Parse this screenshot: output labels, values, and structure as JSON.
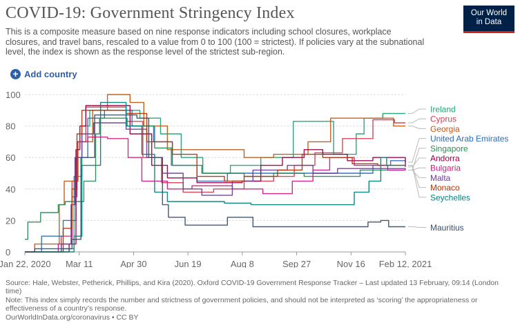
{
  "header": {
    "title": "COVID-19: Government Stringency Index",
    "subtitle": "This is a composite measure based on nine response indicators including school closures, workplace closures, and travel bans, rescaled to a value from 0 to 100 (100 = strictest). If policies vary at the subnational level, the index is shown as the response level of the strictest sub-region.",
    "logo_line1": "Our World",
    "logo_line2": "in Data",
    "add_country_label": "Add country",
    "add_icon": "plus-circle-icon"
  },
  "chart_data": {
    "type": "line",
    "x_ticks": [
      "Jan 22, 2020",
      "Mar 11",
      "Apr 30",
      "Jun 19",
      "Aug 8",
      "Sep 27",
      "Nov 16",
      "Feb 12, 2021"
    ],
    "x_range": [
      "2020-01-22",
      "2021-02-12"
    ],
    "ylim": [
      0,
      100
    ],
    "y_ticks": [
      0,
      20,
      40,
      60,
      80,
      100
    ],
    "grid": "horizontal dashed",
    "legend_position": "right",
    "series": [
      {
        "name": "Ireland",
        "color": "#18a673",
        "points": [
          [
            "2020-01-22",
            0
          ],
          [
            "2020-03-01",
            2
          ],
          [
            "2020-03-12",
            48
          ],
          [
            "2020-03-20",
            80
          ],
          [
            "2020-03-28",
            90
          ],
          [
            "2020-05-18",
            85
          ],
          [
            "2020-06-08",
            75
          ],
          [
            "2020-06-29",
            60
          ],
          [
            "2020-07-21",
            50
          ],
          [
            "2020-08-18",
            55
          ],
          [
            "2020-09-18",
            60
          ],
          [
            "2020-10-07",
            60
          ],
          [
            "2020-10-21",
            83
          ],
          [
            "2020-12-01",
            62
          ],
          [
            "2020-12-24",
            75
          ],
          [
            "2021-01-01",
            85
          ],
          [
            "2021-01-20",
            88
          ],
          [
            "2021-02-12",
            88
          ]
        ]
      },
      {
        "name": "Cyprus",
        "color": "#d73c50",
        "points": [
          [
            "2020-01-22",
            0
          ],
          [
            "2020-02-28",
            10
          ],
          [
            "2020-03-10",
            45
          ],
          [
            "2020-03-16",
            70
          ],
          [
            "2020-03-24",
            92
          ],
          [
            "2020-05-04",
            83
          ],
          [
            "2020-05-21",
            60
          ],
          [
            "2020-06-09",
            44
          ],
          [
            "2020-07-01",
            38
          ],
          [
            "2020-08-01",
            40
          ],
          [
            "2020-09-01",
            45
          ],
          [
            "2020-10-01",
            48
          ],
          [
            "2020-10-22",
            55
          ],
          [
            "2020-11-12",
            63
          ],
          [
            "2020-12-10",
            72
          ],
          [
            "2021-01-10",
            84
          ],
          [
            "2021-02-01",
            82
          ],
          [
            "2021-02-12",
            82
          ]
        ]
      },
      {
        "name": "Georgia",
        "color": "#c15814",
        "points": [
          [
            "2020-01-22",
            0
          ],
          [
            "2020-02-01",
            5
          ],
          [
            "2020-02-26",
            30
          ],
          [
            "2020-03-02",
            45
          ],
          [
            "2020-03-16",
            70
          ],
          [
            "2020-03-31",
            90
          ],
          [
            "2020-04-15",
            100
          ],
          [
            "2020-05-08",
            95
          ],
          [
            "2020-05-22",
            80
          ],
          [
            "2020-06-15",
            65
          ],
          [
            "2020-07-10",
            65
          ],
          [
            "2020-08-01",
            65
          ],
          [
            "2020-09-01",
            60
          ],
          [
            "2020-10-01",
            62
          ],
          [
            "2020-11-05",
            70
          ],
          [
            "2020-11-28",
            85
          ],
          [
            "2021-01-01",
            85
          ],
          [
            "2021-01-31",
            80
          ],
          [
            "2021-02-12",
            80
          ]
        ]
      },
      {
        "name": "United Arab Emirates",
        "color": "#286bbb",
        "points": [
          [
            "2020-01-22",
            0
          ],
          [
            "2020-02-08",
            10
          ],
          [
            "2020-03-01",
            20
          ],
          [
            "2020-03-14",
            60
          ],
          [
            "2020-03-26",
            85
          ],
          [
            "2020-04-12",
            90
          ],
          [
            "2020-05-10",
            80
          ],
          [
            "2020-06-01",
            70
          ],
          [
            "2020-06-20",
            55
          ],
          [
            "2020-07-15",
            45
          ],
          [
            "2020-08-15",
            50
          ],
          [
            "2020-09-15",
            50
          ],
          [
            "2020-10-15",
            50
          ],
          [
            "2020-11-15",
            50
          ],
          [
            "2020-12-15",
            50
          ],
          [
            "2021-01-10",
            55
          ],
          [
            "2021-01-28",
            58
          ],
          [
            "2021-02-12",
            57
          ]
        ]
      },
      {
        "name": "Singapore",
        "color": "#2e8b57",
        "points": [
          [
            "2020-01-22",
            8
          ],
          [
            "2020-01-25",
            19
          ],
          [
            "2020-02-07",
            25
          ],
          [
            "2020-02-25",
            30
          ],
          [
            "2020-03-03",
            32
          ],
          [
            "2020-03-22",
            45
          ],
          [
            "2020-04-03",
            75
          ],
          [
            "2020-04-07",
            85
          ],
          [
            "2020-05-05",
            80
          ],
          [
            "2020-06-02",
            66
          ],
          [
            "2020-06-19",
            55
          ],
          [
            "2020-07-20",
            50
          ],
          [
            "2020-09-01",
            48
          ],
          [
            "2020-10-01",
            50
          ],
          [
            "2020-11-01",
            48
          ],
          [
            "2020-12-28",
            52
          ],
          [
            "2021-02-12",
            52
          ]
        ]
      },
      {
        "name": "Andorra",
        "color": "#970046",
        "points": [
          [
            "2020-01-22",
            0
          ],
          [
            "2020-03-07",
            5
          ],
          [
            "2020-03-14",
            65
          ],
          [
            "2020-03-18",
            80
          ],
          [
            "2020-03-24",
            93
          ],
          [
            "2020-05-08",
            75
          ],
          [
            "2020-05-30",
            55
          ],
          [
            "2020-06-15",
            47
          ],
          [
            "2020-07-15",
            44
          ],
          [
            "2020-08-30",
            45
          ],
          [
            "2020-09-18",
            55
          ],
          [
            "2020-10-10",
            60
          ],
          [
            "2020-11-01",
            65
          ],
          [
            "2020-11-20",
            62
          ],
          [
            "2020-12-15",
            58
          ],
          [
            "2021-01-10",
            60
          ],
          [
            "2021-02-12",
            54
          ]
        ]
      },
      {
        "name": "Bulgaria",
        "color": "#d01b85",
        "points": [
          [
            "2020-01-22",
            0
          ],
          [
            "2020-02-25",
            5
          ],
          [
            "2020-03-10",
            35
          ],
          [
            "2020-03-15",
            70
          ],
          [
            "2020-03-26",
            73
          ],
          [
            "2020-04-15",
            72
          ],
          [
            "2020-05-06",
            60
          ],
          [
            "2020-05-20",
            45
          ],
          [
            "2020-06-15",
            40
          ],
          [
            "2020-07-10",
            42
          ],
          [
            "2020-08-20",
            40
          ],
          [
            "2020-09-20",
            37
          ],
          [
            "2020-10-20",
            45
          ],
          [
            "2020-11-10",
            52
          ],
          [
            "2020-11-27",
            60
          ],
          [
            "2020-12-22",
            55
          ],
          [
            "2021-01-25",
            52
          ],
          [
            "2021-02-12",
            52
          ]
        ]
      },
      {
        "name": "Malta",
        "color": "#6d3e91",
        "points": [
          [
            "2020-01-22",
            0
          ],
          [
            "2020-02-28",
            5
          ],
          [
            "2020-03-09",
            30
          ],
          [
            "2020-03-13",
            60
          ],
          [
            "2020-03-20",
            75
          ],
          [
            "2020-04-01",
            82
          ],
          [
            "2020-05-04",
            78
          ],
          [
            "2020-05-25",
            60
          ],
          [
            "2020-06-10",
            50
          ],
          [
            "2020-07-01",
            40
          ],
          [
            "2020-07-20",
            36
          ],
          [
            "2020-08-20",
            45
          ],
          [
            "2020-09-10",
            52
          ],
          [
            "2020-10-15",
            55
          ],
          [
            "2020-11-10",
            50
          ],
          [
            "2020-12-05",
            53
          ],
          [
            "2021-01-05",
            53
          ],
          [
            "2021-02-12",
            52
          ]
        ]
      },
      {
        "name": "Monaco",
        "color": "#b13507",
        "points": [
          [
            "2020-01-22",
            0
          ],
          [
            "2020-03-01",
            15
          ],
          [
            "2020-03-10",
            40
          ],
          [
            "2020-03-15",
            75
          ],
          [
            "2020-03-20",
            90
          ],
          [
            "2020-05-04",
            88
          ],
          [
            "2020-05-25",
            70
          ],
          [
            "2020-06-20",
            62
          ],
          [
            "2020-07-15",
            48
          ],
          [
            "2020-08-12",
            45
          ],
          [
            "2020-09-01",
            48
          ],
          [
            "2020-10-05",
            52
          ],
          [
            "2020-10-30",
            62
          ],
          [
            "2020-11-20",
            60
          ],
          [
            "2020-12-20",
            56
          ],
          [
            "2021-01-15",
            55
          ],
          [
            "2021-02-12",
            55
          ]
        ]
      },
      {
        "name": "Seychelles",
        "color": "#00847e",
        "points": [
          [
            "2020-01-22",
            0
          ],
          [
            "2020-03-12",
            10
          ],
          [
            "2020-03-20",
            55
          ],
          [
            "2020-04-08",
            95
          ],
          [
            "2020-05-04",
            80
          ],
          [
            "2020-05-20",
            62
          ],
          [
            "2020-06-02",
            38
          ],
          [
            "2020-06-15",
            32
          ],
          [
            "2020-07-10",
            32
          ],
          [
            "2020-08-12",
            31
          ],
          [
            "2020-09-08",
            30
          ],
          [
            "2020-10-02",
            30
          ],
          [
            "2020-11-15",
            30
          ],
          [
            "2020-12-22",
            38
          ],
          [
            "2021-01-06",
            45
          ],
          [
            "2021-01-18",
            60
          ],
          [
            "2021-01-24",
            55
          ],
          [
            "2021-02-12",
            55
          ]
        ]
      },
      {
        "name": "Mauritius",
        "color": "#3c4e66",
        "points": [
          [
            "2020-01-22",
            0
          ],
          [
            "2020-02-01",
            2
          ],
          [
            "2020-03-10",
            8
          ],
          [
            "2020-03-19",
            60
          ],
          [
            "2020-04-02",
            87
          ],
          [
            "2020-05-15",
            85
          ],
          [
            "2020-05-27",
            60
          ],
          [
            "2020-06-10",
            30
          ],
          [
            "2020-06-16",
            22
          ],
          [
            "2020-07-03",
            17
          ],
          [
            "2020-08-01",
            17
          ],
          [
            "2020-08-15",
            22
          ],
          [
            "2020-09-06",
            22
          ],
          [
            "2020-09-10",
            16
          ],
          [
            "2020-10-15",
            16
          ],
          [
            "2020-12-01",
            16
          ],
          [
            "2021-01-05",
            19
          ],
          [
            "2021-01-18",
            20
          ],
          [
            "2021-01-26",
            16
          ],
          [
            "2021-02-12",
            16
          ]
        ]
      }
    ]
  },
  "footer": {
    "source": "Source: Hale, Webster, Petherick, Phillips, and Kira (2020). Oxford COVID-19 Government Response Tracker – Last updated 13 February, 09:14 (London time)",
    "note": "Note: This index simply records the number and strictness of government policies, and should not be interpreted as ‘scoring’ the appropriateness or effectiveness of a country’s response.",
    "link": "OurWorldInData.org/coronavirus • CC BY"
  }
}
